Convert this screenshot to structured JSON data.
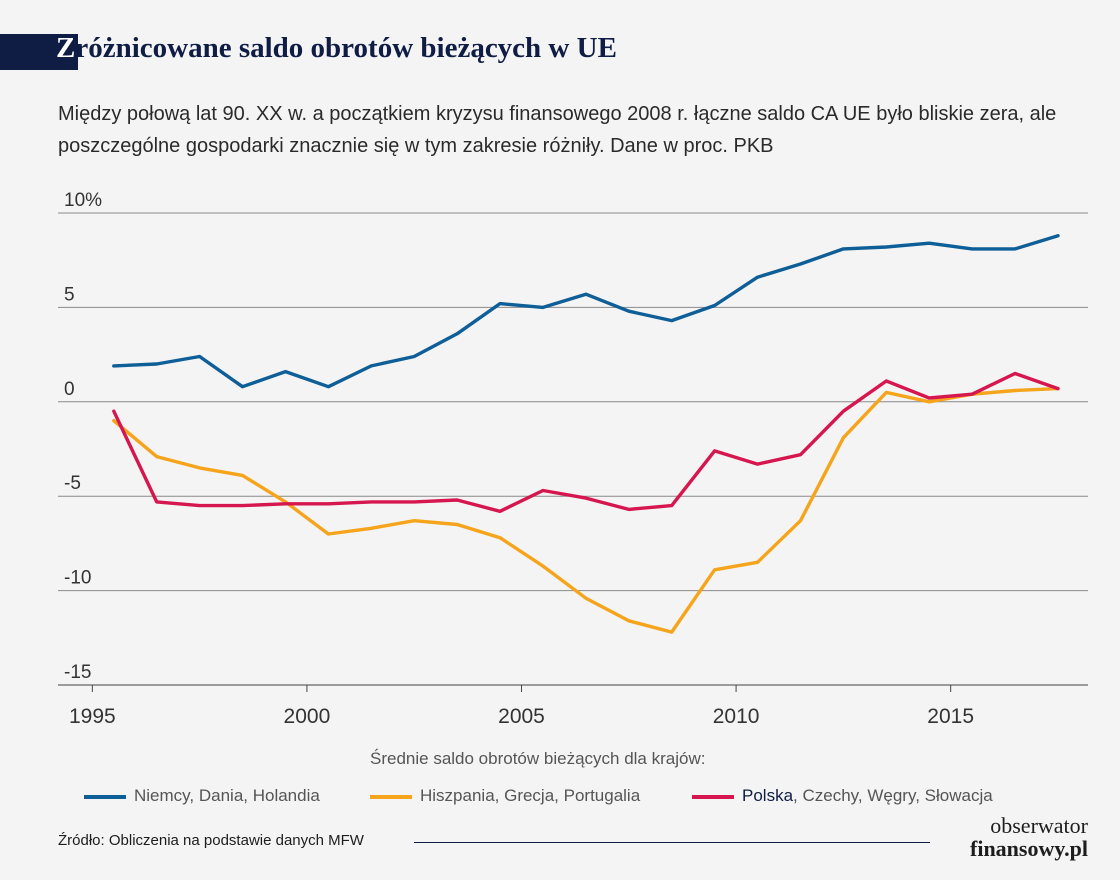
{
  "header": {
    "title_first": "Z",
    "title_rest": "różnicowane saldo obrotów bieżących w UE",
    "subtitle": "Między połową lat 90. XX w. a początkiem kryzysu finansowego 2008 r. łączne saldo CA UE było bliskie zera, ale poszczególne gospodarki znacznie się w tym zakresie różniły. Dane w proc. PKB"
  },
  "legend": {
    "title": "Średnie saldo obrotów bieżących dla krajów:",
    "items": [
      {
        "text": "Niemcy, Dania, Holandia",
        "strong": "",
        "color": "#0e5e98"
      },
      {
        "text": "Hiszpania, Grecja, Portugalia",
        "strong": "",
        "color": "#f5a41b"
      },
      {
        "text": ", Czechy, Węgry, Słowacja",
        "strong": "Polska",
        "color": "#d6174f"
      }
    ]
  },
  "footer": {
    "source": "Źródło: Obliczenia na podstawie danych MFW",
    "logo_line1": "obserwator",
    "logo_line2": "finansowy.pl"
  },
  "chart_data": {
    "type": "line",
    "title": "Zróżnicowane saldo obrotów bieżących w UE",
    "xlabel": "",
    "ylabel": "",
    "xlim": [
      1994.2,
      2018.2
    ],
    "ylim": [
      -15,
      10
    ],
    "x_ticks": [
      1995,
      2000,
      2005,
      2010,
      2015
    ],
    "y_ticks": [
      10,
      5,
      0,
      -5,
      -10,
      -15
    ],
    "y_tick_labels": [
      "10%",
      "5",
      "0",
      "-5",
      "-10",
      "-15"
    ],
    "grid": "horizontal",
    "legend_position": "bottom",
    "x": [
      1995.5,
      1996.5,
      1997.5,
      1998.5,
      1999.5,
      2000.5,
      2001.5,
      2002.5,
      2003.5,
      2004.5,
      2005.5,
      2006.5,
      2007.5,
      2008.5,
      2009.5,
      2010.5,
      2011.5,
      2012.5,
      2013.5,
      2014.5,
      2015.5,
      2016.5,
      2017.5
    ],
    "series": [
      {
        "name": "Niemcy, Dania, Holandia",
        "color": "#0e5e98",
        "values": [
          1.9,
          2.0,
          2.4,
          0.8,
          1.6,
          0.8,
          1.9,
          2.4,
          3.6,
          5.2,
          5.0,
          5.7,
          4.8,
          4.3,
          5.1,
          6.6,
          7.3,
          8.1,
          8.2,
          8.4,
          8.1,
          8.1,
          8.8
        ]
      },
      {
        "name": "Hiszpania, Grecja, Portugalia",
        "color": "#f5a41b",
        "values": [
          -1.0,
          -2.9,
          -3.5,
          -3.9,
          -5.3,
          -7.0,
          -6.7,
          -6.3,
          -6.5,
          -7.2,
          -8.7,
          -10.4,
          -11.6,
          -12.2,
          -8.9,
          -8.5,
          -6.3,
          -1.9,
          0.5,
          0.0,
          0.4,
          0.6,
          0.7
        ]
      },
      {
        "name": "Polska, Czechy, Węgry, Słowacja",
        "color": "#d6174f",
        "values": [
          -0.5,
          -5.3,
          -5.5,
          -5.5,
          -5.4,
          -5.4,
          -5.3,
          -5.3,
          -5.2,
          -5.8,
          -4.7,
          -5.1,
          -5.7,
          -5.5,
          -2.6,
          -3.3,
          -2.8,
          -0.5,
          1.1,
          0.2,
          0.4,
          1.5,
          0.7
        ]
      }
    ]
  }
}
